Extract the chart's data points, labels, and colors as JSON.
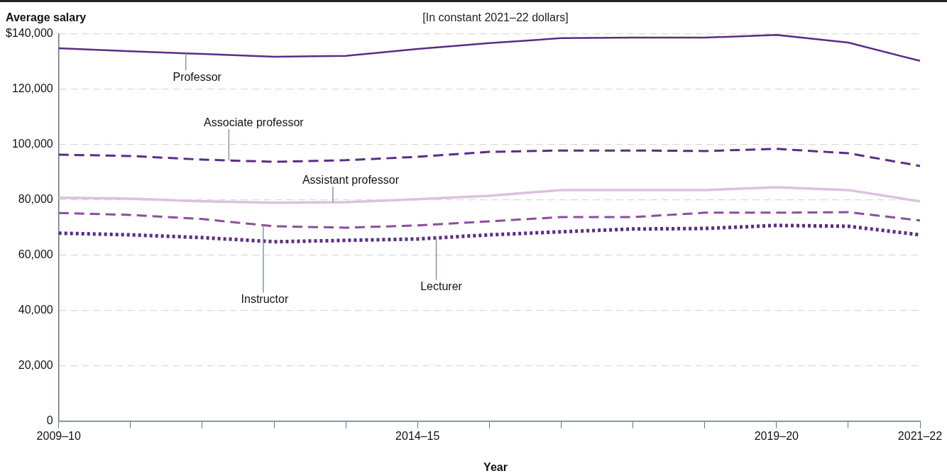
{
  "chart_data": {
    "type": "line",
    "subtitle": "[In constant 2021–22 dollars]",
    "ylabel": "Average salary",
    "xlabel": "Year",
    "categories": [
      "2009–10",
      null,
      null,
      null,
      null,
      "2014–15",
      null,
      null,
      null,
      null,
      "2019–20",
      null,
      "2021–22"
    ],
    "series": [
      {
        "name": "Professor",
        "color": "#5b2c86",
        "line_style": "solid",
        "values": [
          134900,
          133800,
          132800,
          131800,
          132100,
          134600,
          136700,
          138500,
          138700,
          138700,
          139700,
          136900,
          130300
        ]
      },
      {
        "name": "Associate professor",
        "color": "#5b2c86",
        "line_style": "dashed",
        "values": [
          96400,
          95900,
          94600,
          93800,
          94400,
          95600,
          97400,
          97900,
          97900,
          97700,
          98500,
          96900,
          92300
        ]
      },
      {
        "name": "Assistant professor",
        "color": "#dcc0de",
        "line_style": "solid",
        "values": [
          80800,
          80500,
          79500,
          79000,
          79200,
          80300,
          81500,
          83600,
          83600,
          83600,
          84600,
          83600,
          79500
        ]
      },
      {
        "name": "Instructor",
        "color": "#8e4c9e",
        "line_style": "dashed",
        "values": [
          75300,
          74600,
          73100,
          70500,
          70000,
          70800,
          72300,
          73800,
          73800,
          75400,
          75400,
          75600,
          72600
        ]
      },
      {
        "name": "Lecturer",
        "color": "#5b2c86",
        "line_style": "dotted",
        "values": [
          68000,
          67400,
          66400,
          64900,
          65400,
          65900,
          67400,
          68500,
          69500,
          69700,
          70800,
          70500,
          67400
        ]
      }
    ],
    "ylim": [
      0,
      140000
    ],
    "yticks": [
      0,
      {
        "value": 20000,
        "label": "20,000"
      },
      {
        "value": 40000,
        "label": "40,000"
      },
      {
        "value": 60000,
        "label": "60,000"
      },
      {
        "value": 80000,
        "label": "80,000"
      },
      {
        "value": 100000,
        "label": "100,000"
      },
      {
        "value": 120000,
        "label": "120,000"
      },
      {
        "value": 140000,
        "label": "$140,000"
      }
    ],
    "grid": "y",
    "legend": false,
    "marker": "none"
  }
}
